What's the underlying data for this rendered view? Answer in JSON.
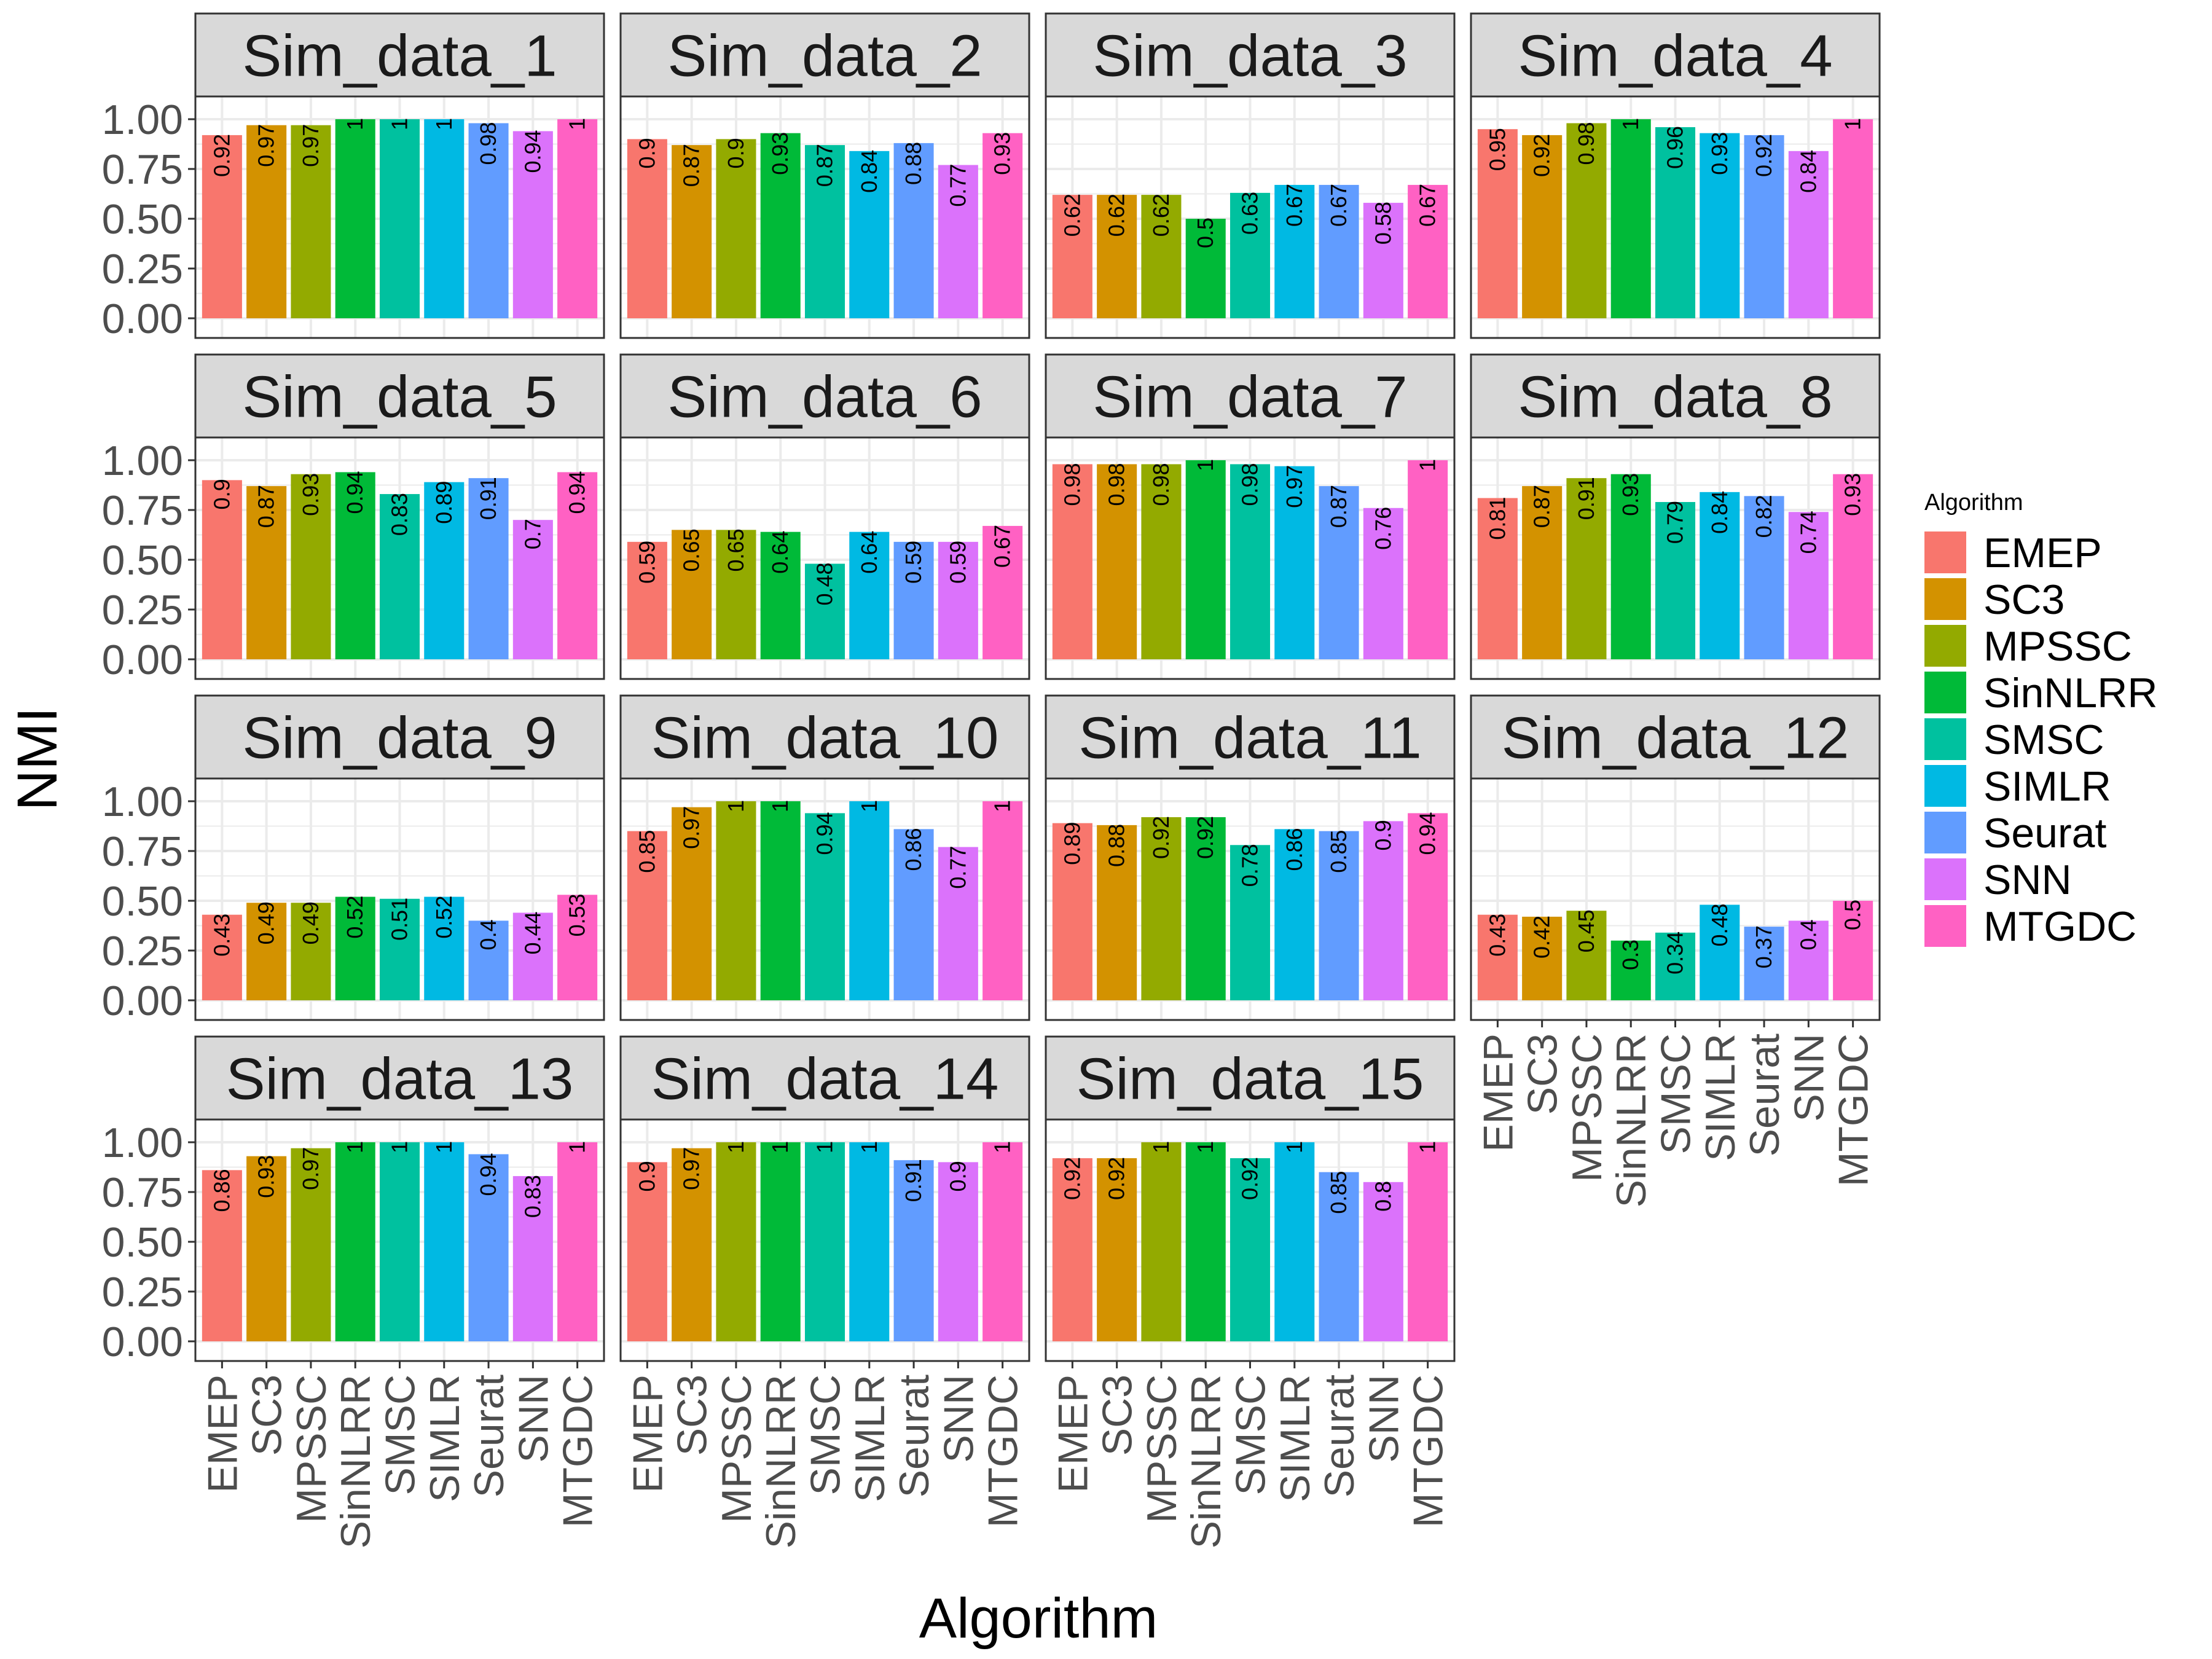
{
  "chart_data": {
    "type": "bar",
    "ylabel": "NMI",
    "xlabel": "Algorithm",
    "ylim": [
      0,
      1
    ],
    "yticks": [
      "0.00",
      "0.25",
      "0.50",
      "0.75",
      "1.00"
    ],
    "grid": true,
    "legend_title": "Algorithm",
    "legend_position": "right",
    "categories": [
      "EMEP",
      "SC3",
      "MPSSC",
      "SinNLRR",
      "SMSC",
      "SIMLR",
      "Seurat",
      "SNN",
      "MTGDC"
    ],
    "colors": [
      "#F8766D",
      "#D39200",
      "#93AA00",
      "#00BA38",
      "#00C19F",
      "#00B9E3",
      "#619CFF",
      "#DB72FB",
      "#FF61C3"
    ],
    "panels": [
      {
        "title": "Sim_data_1",
        "values": [
          0.92,
          0.97,
          0.97,
          1,
          1,
          1,
          0.98,
          0.94,
          1
        ],
        "labels": [
          "0.92",
          "0.97",
          "0.97",
          "1",
          "1",
          "1",
          "0.98",
          "0.94",
          "1"
        ]
      },
      {
        "title": "Sim_data_2",
        "values": [
          0.9,
          0.87,
          0.9,
          0.93,
          0.87,
          0.84,
          0.88,
          0.77,
          0.93
        ],
        "labels": [
          "0.9",
          "0.87",
          "0.9",
          "0.93",
          "0.87",
          "0.84",
          "0.88",
          "0.77",
          "0.93"
        ]
      },
      {
        "title": "Sim_data_3",
        "values": [
          0.62,
          0.62,
          0.62,
          0.5,
          0.63,
          0.67,
          0.67,
          0.58,
          0.67
        ],
        "labels": [
          "0.62",
          "0.62",
          "0.62",
          "0.5",
          "0.63",
          "0.67",
          "0.67",
          "0.58",
          "0.67"
        ]
      },
      {
        "title": "Sim_data_4",
        "values": [
          0.95,
          0.92,
          0.98,
          1,
          0.96,
          0.93,
          0.92,
          0.84,
          1
        ],
        "labels": [
          "0.95",
          "0.92",
          "0.98",
          "1",
          "0.96",
          "0.93",
          "0.92",
          "0.84",
          "1"
        ]
      },
      {
        "title": "Sim_data_5",
        "values": [
          0.9,
          0.87,
          0.93,
          0.94,
          0.83,
          0.89,
          0.91,
          0.7,
          0.94
        ],
        "labels": [
          "0.9",
          "0.87",
          "0.93",
          "0.94",
          "0.83",
          "0.89",
          "0.91",
          "0.7",
          "0.94"
        ]
      },
      {
        "title": "Sim_data_6",
        "values": [
          0.59,
          0.65,
          0.65,
          0.64,
          0.48,
          0.64,
          0.59,
          0.59,
          0.67
        ],
        "labels": [
          "0.59",
          "0.65",
          "0.65",
          "0.64",
          "0.48",
          "0.64",
          "0.59",
          "0.59",
          "0.67"
        ]
      },
      {
        "title": "Sim_data_7",
        "values": [
          0.98,
          0.98,
          0.98,
          1,
          0.98,
          0.97,
          0.87,
          0.76,
          1
        ],
        "labels": [
          "0.98",
          "0.98",
          "0.98",
          "1",
          "0.98",
          "0.97",
          "0.87",
          "0.76",
          "1"
        ]
      },
      {
        "title": "Sim_data_8",
        "values": [
          0.81,
          0.87,
          0.91,
          0.93,
          0.79,
          0.84,
          0.82,
          0.74,
          0.93
        ],
        "labels": [
          "0.81",
          "0.87",
          "0.91",
          "0.93",
          "0.79",
          "0.84",
          "0.82",
          "0.74",
          "0.93"
        ]
      },
      {
        "title": "Sim_data_9",
        "values": [
          0.43,
          0.49,
          0.49,
          0.52,
          0.51,
          0.52,
          0.4,
          0.44,
          0.53
        ],
        "labels": [
          "0.43",
          "0.49",
          "0.49",
          "0.52",
          "0.51",
          "0.52",
          "0.4",
          "0.44",
          "0.53"
        ]
      },
      {
        "title": "Sim_data_10",
        "values": [
          0.85,
          0.97,
          1,
          1,
          0.94,
          1,
          0.86,
          0.77,
          1
        ],
        "labels": [
          "0.85",
          "0.97",
          "1",
          "1",
          "0.94",
          "1",
          "0.86",
          "0.77",
          "1"
        ]
      },
      {
        "title": "Sim_data_11",
        "values": [
          0.89,
          0.88,
          0.92,
          0.92,
          0.78,
          0.86,
          0.85,
          0.9,
          0.94
        ],
        "labels": [
          "0.89",
          "0.88",
          "0.92",
          "0.92",
          "0.78",
          "0.86",
          "0.85",
          "0.9",
          "0.94"
        ]
      },
      {
        "title": "Sim_data_12",
        "values": [
          0.43,
          0.42,
          0.45,
          0.3,
          0.34,
          0.48,
          0.37,
          0.4,
          0.5
        ],
        "labels": [
          "0.43",
          "0.42",
          "0.45",
          "0.3",
          "0.34",
          "0.48",
          "0.37",
          "0.4",
          "0.5"
        ]
      },
      {
        "title": "Sim_data_13",
        "values": [
          0.86,
          0.93,
          0.97,
          1,
          1,
          1,
          0.94,
          0.83,
          1
        ],
        "labels": [
          "0.86",
          "0.93",
          "0.97",
          "1",
          "1",
          "1",
          "0.94",
          "0.83",
          "1"
        ]
      },
      {
        "title": "Sim_data_14",
        "values": [
          0.9,
          0.97,
          1,
          1,
          1,
          1,
          0.91,
          0.9,
          1
        ],
        "labels": [
          "0.9",
          "0.97",
          "1",
          "1",
          "1",
          "1",
          "0.91",
          "0.9",
          "1"
        ]
      },
      {
        "title": "Sim_data_15",
        "values": [
          0.92,
          0.92,
          1,
          1,
          0.92,
          1,
          0.85,
          0.8,
          1
        ],
        "labels": [
          "0.92",
          "0.92",
          "1",
          "1",
          "0.92",
          "1",
          "0.85",
          "0.8",
          "1"
        ]
      }
    ]
  }
}
